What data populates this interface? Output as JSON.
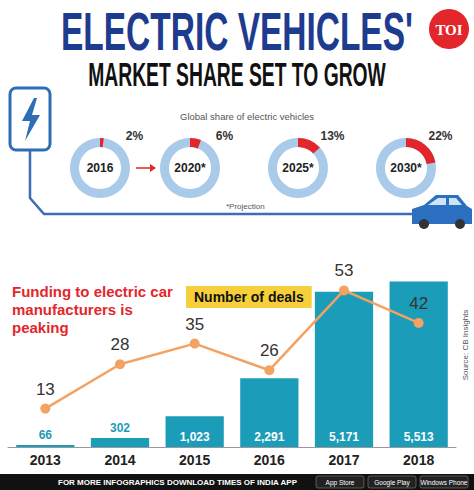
{
  "title": "ELECTRIC VEHICLES'",
  "subtitle": "MARKET SHARE SET TO GROW",
  "logo": "TOI",
  "source": "Source: CB Insights",
  "footer": {
    "text": "FOR MORE INFOGRAPHICS DOWNLOAD TIMES OF INDIA APP",
    "badges": [
      "App Store",
      "Google Play",
      "Windows Phone"
    ]
  },
  "chart_data": [
    {
      "type": "donut",
      "title": "Global share of electric vehicles",
      "annotations": [
        "*Projection"
      ],
      "categories": [
        "2016",
        "2020*",
        "2025*",
        "2030*"
      ],
      "values": [
        2,
        6,
        13,
        22
      ],
      "value_labels": [
        "2%",
        "6%",
        "13%",
        "22%"
      ],
      "ylim": [
        0,
        100
      ],
      "color": "#e3262b",
      "data_labels": true,
      "tick_labels": false
    },
    {
      "type": "bar",
      "categories": [
        "2013",
        "2014",
        "2015",
        "2016",
        "2017",
        "2018"
      ],
      "series": [
        {
          "name": "Funding to electric car manufacturers is peaking",
          "type": "bar",
          "color": "#1b9cb8",
          "values": [
            66,
            302,
            1023,
            2291,
            5171,
            5513
          ],
          "value_labels": [
            "66",
            "302",
            "1,023",
            "2,291",
            "5,171",
            "5,513"
          ]
        },
        {
          "name": "Number of deals",
          "type": "line",
          "axis": "y2",
          "color": "#f4a261",
          "marker": "circle",
          "line_style": "solid",
          "values": [
            13,
            28,
            35,
            26,
            53,
            42
          ]
        }
      ],
      "ylim": [
        0,
        6400
      ],
      "yticks": [
        0,
        6400
      ],
      "y2lim": [
        0,
        65
      ],
      "y2ticks": [
        0,
        65
      ],
      "data_labels": true,
      "tick_labels": "x",
      "grid": false
    }
  ]
}
